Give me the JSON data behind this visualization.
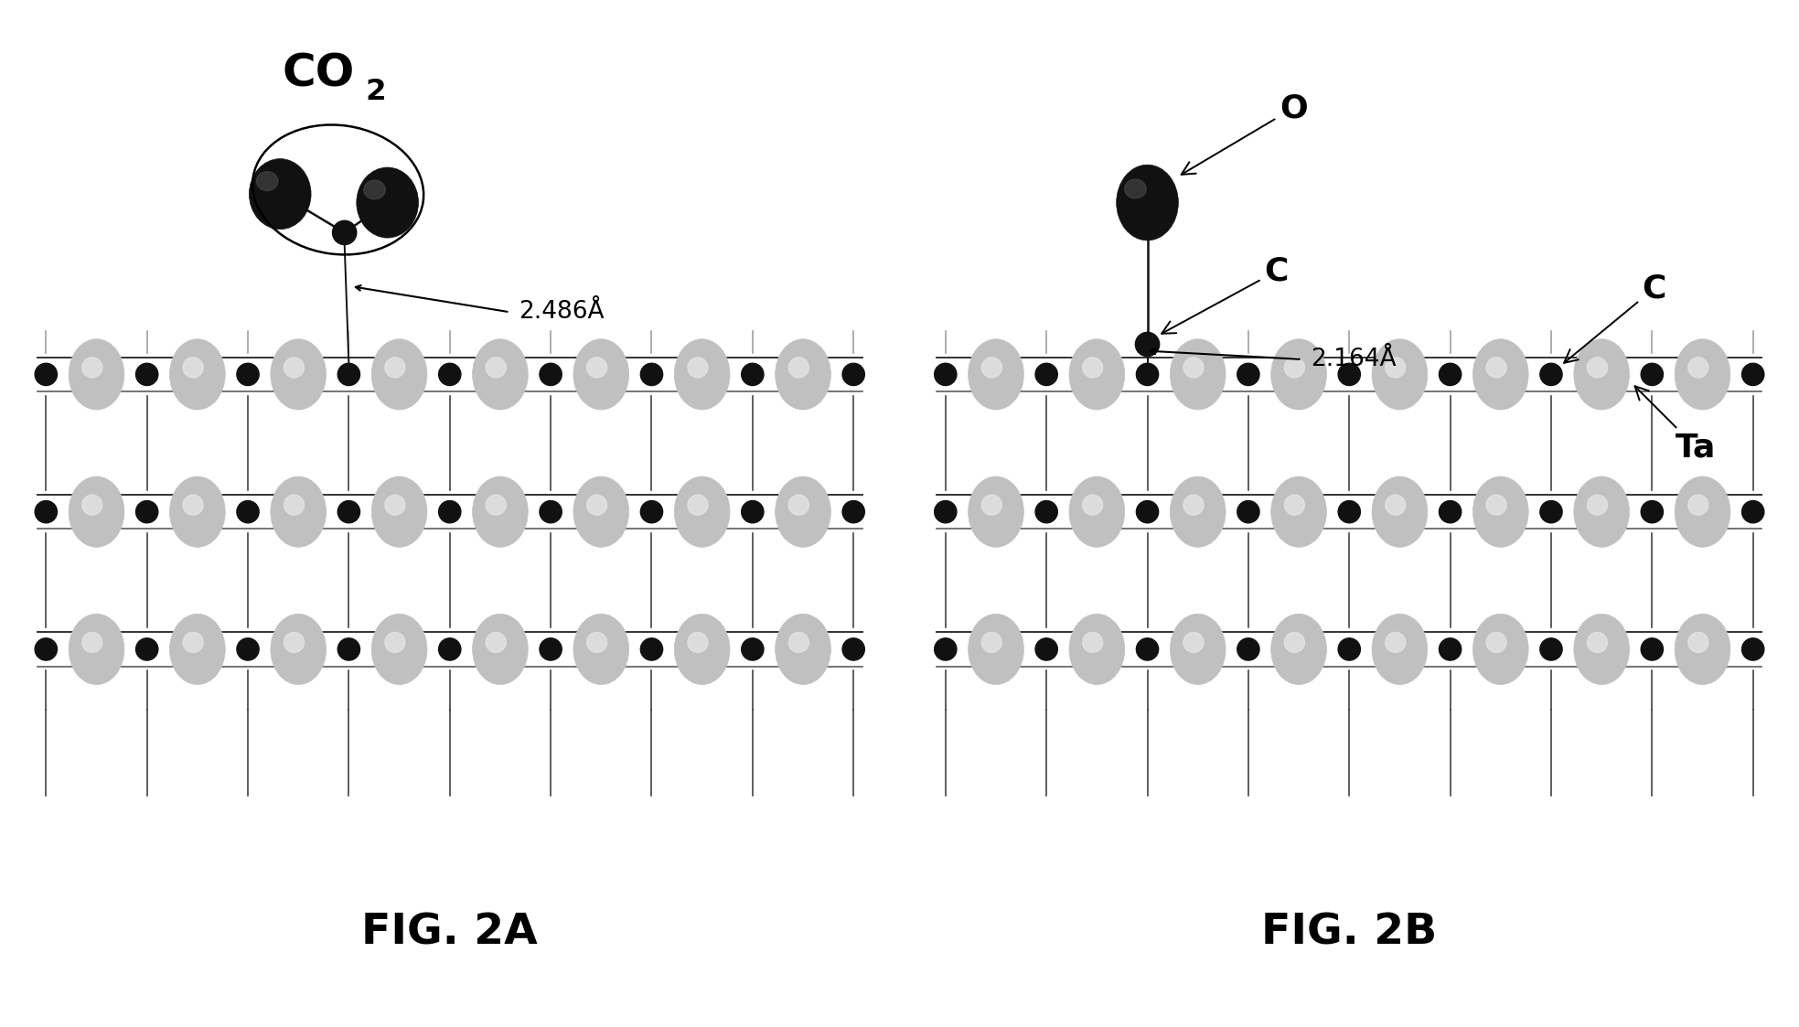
{
  "fig_label_a": "FIG. 2A",
  "fig_label_b": "FIG. 2B",
  "dist_a": "2.486Å",
  "dist_b": "2.164Å",
  "bg_color": "#ffffff",
  "dark_color": "#111111",
  "gray_color": "#aaaaaa",
  "line_color": "#333333",
  "label_fontsize": 26,
  "dist_fontsize": 19,
  "fig_label_fontsize": 34,
  "co2_fontsize": 36
}
